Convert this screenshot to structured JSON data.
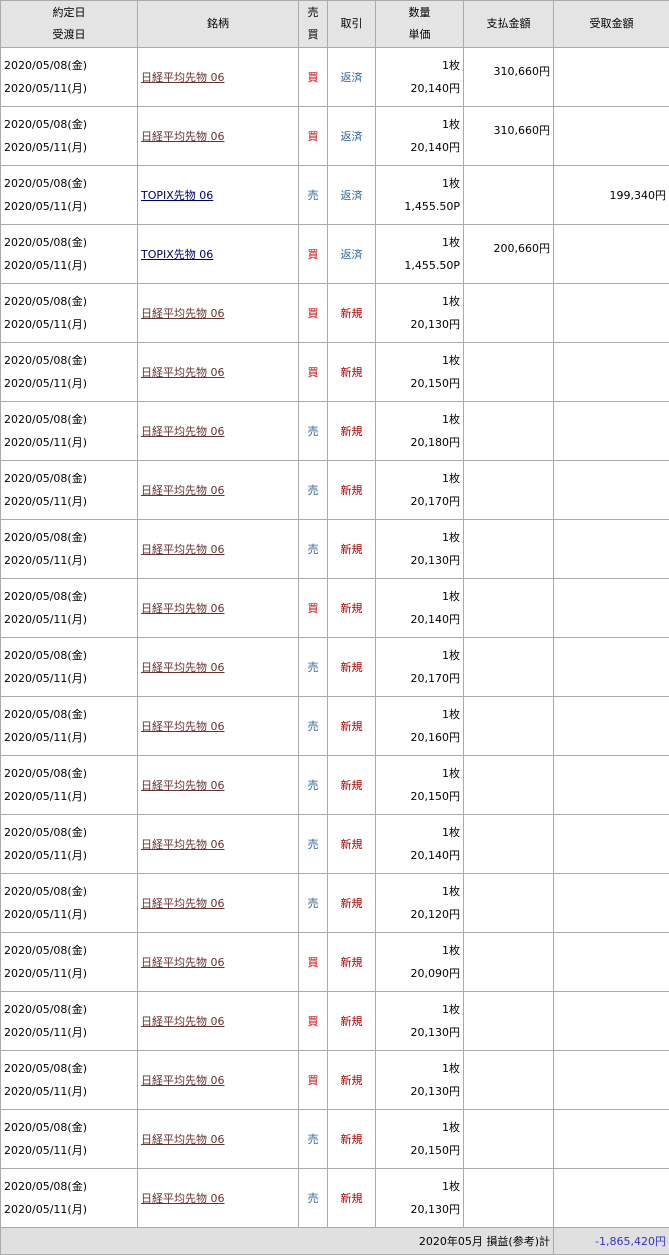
{
  "header": {
    "date1": "約定日",
    "date2": "受渡日",
    "name": "銘柄",
    "side1": "売",
    "side2": "買",
    "trade": "取引",
    "qty": "数量",
    "price": "単価",
    "pay": "支払金額",
    "recv": "受取金額"
  },
  "colors": {
    "buy": "#cc0000",
    "sell": "#336699",
    "new": "#aa0000",
    "close": "#336699",
    "total": "#3333cc"
  },
  "rows": [
    {
      "d1": "2020/05/08(金)",
      "d2": "2020/05/11(月)",
      "name": "日経平均先物 06",
      "side": "買",
      "trade": "返済",
      "qty": "1枚",
      "price": "20,140円",
      "pay": "310,660円",
      "recv": ""
    },
    {
      "d1": "2020/05/08(金)",
      "d2": "2020/05/11(月)",
      "name": "日経平均先物 06",
      "side": "買",
      "trade": "返済",
      "qty": "1枚",
      "price": "20,140円",
      "pay": "310,660円",
      "recv": ""
    },
    {
      "d1": "2020/05/08(金)",
      "d2": "2020/05/11(月)",
      "name": "TOPIX先物 06",
      "side": "売",
      "trade": "返済",
      "qty": "1枚",
      "price": "1,455.50P",
      "pay": "",
      "recv": "199,340円"
    },
    {
      "d1": "2020/05/08(金)",
      "d2": "2020/05/11(月)",
      "name": "TOPIX先物 06",
      "side": "買",
      "trade": "返済",
      "qty": "1枚",
      "price": "1,455.50P",
      "pay": "200,660円",
      "recv": ""
    },
    {
      "d1": "2020/05/08(金)",
      "d2": "2020/05/11(月)",
      "name": "日経平均先物 06",
      "side": "買",
      "trade": "新規",
      "qty": "1枚",
      "price": "20,130円",
      "pay": "",
      "recv": ""
    },
    {
      "d1": "2020/05/08(金)",
      "d2": "2020/05/11(月)",
      "name": "日経平均先物 06",
      "side": "買",
      "trade": "新規",
      "qty": "1枚",
      "price": "20,150円",
      "pay": "",
      "recv": ""
    },
    {
      "d1": "2020/05/08(金)",
      "d2": "2020/05/11(月)",
      "name": "日経平均先物 06",
      "side": "売",
      "trade": "新規",
      "qty": "1枚",
      "price": "20,180円",
      "pay": "",
      "recv": ""
    },
    {
      "d1": "2020/05/08(金)",
      "d2": "2020/05/11(月)",
      "name": "日経平均先物 06",
      "side": "売",
      "trade": "新規",
      "qty": "1枚",
      "price": "20,170円",
      "pay": "",
      "recv": ""
    },
    {
      "d1": "2020/05/08(金)",
      "d2": "2020/05/11(月)",
      "name": "日経平均先物 06",
      "side": "売",
      "trade": "新規",
      "qty": "1枚",
      "price": "20,130円",
      "pay": "",
      "recv": ""
    },
    {
      "d1": "2020/05/08(金)",
      "d2": "2020/05/11(月)",
      "name": "日経平均先物 06",
      "side": "買",
      "trade": "新規",
      "qty": "1枚",
      "price": "20,140円",
      "pay": "",
      "recv": ""
    },
    {
      "d1": "2020/05/08(金)",
      "d2": "2020/05/11(月)",
      "name": "日経平均先物 06",
      "side": "売",
      "trade": "新規",
      "qty": "1枚",
      "price": "20,170円",
      "pay": "",
      "recv": ""
    },
    {
      "d1": "2020/05/08(金)",
      "d2": "2020/05/11(月)",
      "name": "日経平均先物 06",
      "side": "売",
      "trade": "新規",
      "qty": "1枚",
      "price": "20,160円",
      "pay": "",
      "recv": ""
    },
    {
      "d1": "2020/05/08(金)",
      "d2": "2020/05/11(月)",
      "name": "日経平均先物 06",
      "side": "売",
      "trade": "新規",
      "qty": "1枚",
      "price": "20,150円",
      "pay": "",
      "recv": ""
    },
    {
      "d1": "2020/05/08(金)",
      "d2": "2020/05/11(月)",
      "name": "日経平均先物 06",
      "side": "売",
      "trade": "新規",
      "qty": "1枚",
      "price": "20,140円",
      "pay": "",
      "recv": ""
    },
    {
      "d1": "2020/05/08(金)",
      "d2": "2020/05/11(月)",
      "name": "日経平均先物 06",
      "side": "売",
      "trade": "新規",
      "qty": "1枚",
      "price": "20,120円",
      "pay": "",
      "recv": ""
    },
    {
      "d1": "2020/05/08(金)",
      "d2": "2020/05/11(月)",
      "name": "日経平均先物 06",
      "side": "買",
      "trade": "新規",
      "qty": "1枚",
      "price": "20,090円",
      "pay": "",
      "recv": ""
    },
    {
      "d1": "2020/05/08(金)",
      "d2": "2020/05/11(月)",
      "name": "日経平均先物 06",
      "side": "買",
      "trade": "新規",
      "qty": "1枚",
      "price": "20,130円",
      "pay": "",
      "recv": ""
    },
    {
      "d1": "2020/05/08(金)",
      "d2": "2020/05/11(月)",
      "name": "日経平均先物 06",
      "side": "買",
      "trade": "新規",
      "qty": "1枚",
      "price": "20,130円",
      "pay": "",
      "recv": ""
    },
    {
      "d1": "2020/05/08(金)",
      "d2": "2020/05/11(月)",
      "name": "日経平均先物 06",
      "side": "売",
      "trade": "新規",
      "qty": "1枚",
      "price": "20,150円",
      "pay": "",
      "recv": ""
    },
    {
      "d1": "2020/05/08(金)",
      "d2": "2020/05/11(月)",
      "name": "日経平均先物 06",
      "side": "売",
      "trade": "新規",
      "qty": "1枚",
      "price": "20,130円",
      "pay": "",
      "recv": ""
    }
  ],
  "footer": {
    "label": "2020年05月 損益(参考)計",
    "total": "-1,865,420円"
  }
}
